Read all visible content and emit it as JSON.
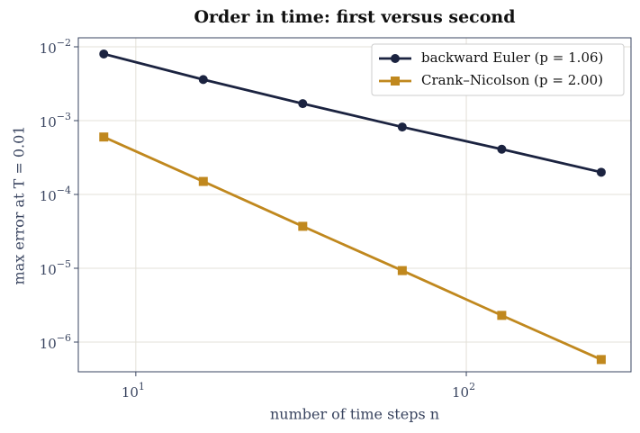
{
  "chart_data": {
    "type": "line",
    "title": "Order in time: first versus second",
    "x_label": "number of time steps  n",
    "y_label": "max error at T = 0.01",
    "x": [
      8,
      16,
      32,
      64,
      128,
      256
    ],
    "series": [
      {
        "name": "backward Euler  (p = 1.06)",
        "color": "#1b2340",
        "marker": "circle",
        "values": [
          0.008,
          0.0036,
          0.0017,
          0.00082,
          0.00041,
          0.0002
        ]
      },
      {
        "name": "Crank–Nicolson  (p = 2.00)",
        "color": "#c0881e",
        "marker": "square",
        "values": [
          0.0006,
          0.00015,
          3.7e-05,
          9.3e-06,
          2.3e-06,
          5.8e-07
        ]
      }
    ],
    "x_log": true,
    "y_log": true,
    "xlim": [
      6.7,
      315
    ],
    "ylim": [
      3.96e-07,
      0.01324
    ],
    "xticks": [
      {
        "value": 10,
        "label": "10",
        "exponent": "1"
      },
      {
        "value": 100,
        "label": "10",
        "exponent": "2"
      }
    ],
    "yticks": [
      {
        "value": 0.01,
        "label": "10",
        "exponent": "−2"
      },
      {
        "value": 0.001,
        "label": "10",
        "exponent": "−3"
      },
      {
        "value": 0.0001,
        "label": "10",
        "exponent": "−4"
      },
      {
        "value": 1e-05,
        "label": "10",
        "exponent": "−5"
      },
      {
        "value": 1e-06,
        "label": "10",
        "exponent": "−6"
      }
    ],
    "grid": true,
    "legend": "upper right"
  }
}
